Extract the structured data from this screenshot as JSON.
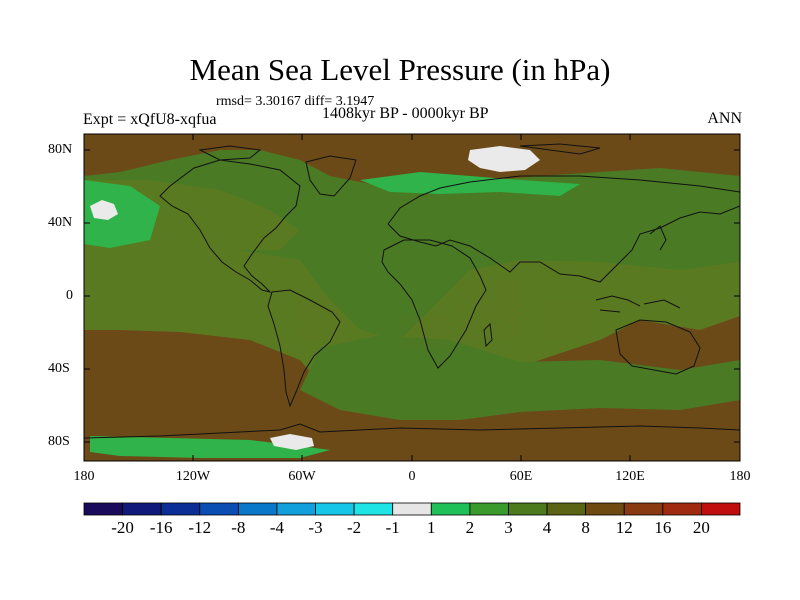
{
  "title": "Mean Sea Level Pressure (in hPa)",
  "stats_line": "rmsd= 3.30167 diff= 3.1947",
  "left_label": "Expt = xQfU8-xqfua",
  "center_label": "1408kyr BP - 0000kyr BP",
  "right_label": "ANN",
  "lat_ticks": [
    "80N",
    "40N",
    "0",
    "40S",
    "80S"
  ],
  "lon_ticks": [
    "180",
    "120W",
    "60W",
    "0",
    "60E",
    "120E",
    "180"
  ],
  "colorbar": {
    "colors": [
      "#1a0a5c",
      "#101a7a",
      "#0a2e96",
      "#0a4eb4",
      "#0a78c8",
      "#12a0dc",
      "#16c6e8",
      "#1ee4e6",
      "#e6e6e6",
      "#1ec05a",
      "#3a9a2c",
      "#4c7a1c",
      "#5a6414",
      "#6e4a10",
      "#8a3a10",
      "#a02a10",
      "#c00e0e"
    ],
    "labels": [
      "-20",
      "-16",
      "-12",
      "-8",
      "-4",
      "-3",
      "-2",
      "-1",
      "1",
      "2",
      "3",
      "4",
      "8",
      "12",
      "16",
      "20"
    ]
  },
  "map_colors": {
    "base": "#4a7a24",
    "positive_high": "#6b4a18",
    "positive_low": "#5a7a22",
    "small_positive": "#2fb34a",
    "near_zero": "#eaeaea",
    "coast": "#111111"
  }
}
